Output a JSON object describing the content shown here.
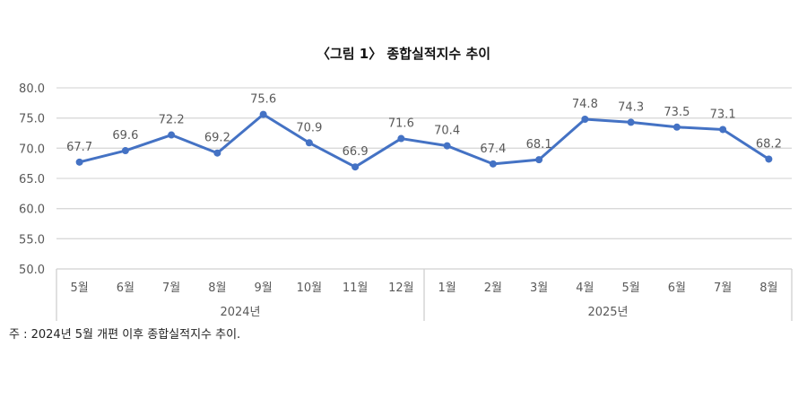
{
  "chart_data": {
    "type": "line",
    "title": "〈그림 1〉 종합실적지수 추이",
    "categories": [
      "5월",
      "6월",
      "7월",
      "8월",
      "9월",
      "10월",
      "11월",
      "12월",
      "1월",
      "2월",
      "3월",
      "4월",
      "5월",
      "6월",
      "7월",
      "8월"
    ],
    "groups": [
      {
        "label": "2024년",
        "count": 8
      },
      {
        "label": "2025년",
        "count": 8
      }
    ],
    "series": [
      {
        "values": [
          67.7,
          69.6,
          72.2,
          69.2,
          75.6,
          70.9,
          66.9,
          71.6,
          70.4,
          67.4,
          68.1,
          74.8,
          74.3,
          73.5,
          73.1,
          68.2
        ]
      }
    ],
    "ylim": [
      50,
      80
    ],
    "yticks": [
      "50.0",
      "55.0",
      "60.0",
      "65.0",
      "70.0",
      "75.0",
      "80.0"
    ],
    "grid": true,
    "line_color": "#4472c4",
    "note": "주 : 2024년 5월 개편 이후 종합실적지수 추이."
  }
}
